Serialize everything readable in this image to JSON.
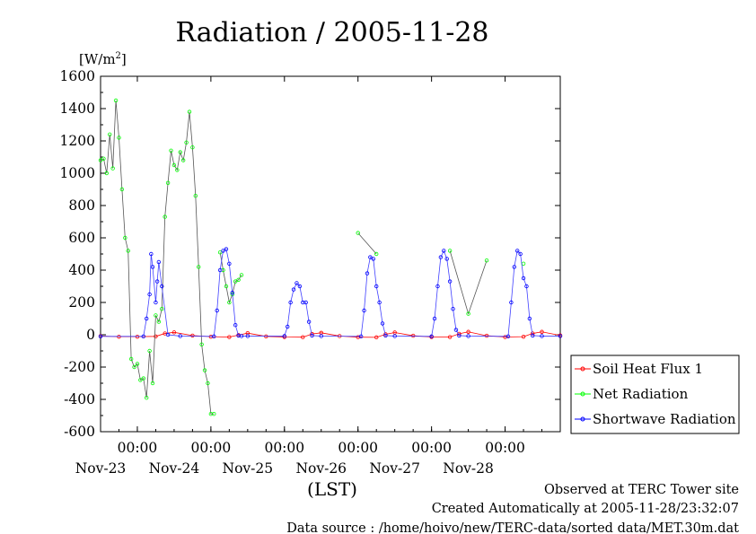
{
  "chart_data": {
    "type": "line",
    "title": "Radiation / 2005-11-28",
    "ylabel": "[W/m",
    "ylabel_sup": "2",
    "ylabel_close": "]",
    "xlabel": "(LST)",
    "ylim": [
      -600,
      1600
    ],
    "xlim": [
      "2005-11-22 12:00",
      "2005-11-28 18:00"
    ],
    "y_ticks": [
      "1600",
      "1400",
      "1200",
      "1000",
      "800",
      "600",
      "400",
      "200",
      "0",
      "-200",
      "-400",
      "-600"
    ],
    "x_ticks": [
      {
        "time": "00:00",
        "date": "Nov-23",
        "x": "2005-11-23 00:00"
      },
      {
        "time": "00:00",
        "date": "Nov-24",
        "x": "2005-11-24 00:00"
      },
      {
        "time": "00:00",
        "date": "Nov-25",
        "x": "2005-11-25 00:00"
      },
      {
        "time": "00:00",
        "date": "Nov-26",
        "x": "2005-11-26 00:00"
      },
      {
        "time": "00:00",
        "date": "Nov-27",
        "x": "2005-11-27 00:00"
      },
      {
        "time": "00:00",
        "date": "Nov-28",
        "x": "2005-11-28 00:00"
      }
    ],
    "legend_position": "right",
    "grid": false,
    "series": [
      {
        "name": "Soil Heat Flux 1",
        "color": "#ff0000",
        "x": [
          "2005-11-22 12:00",
          "2005-11-22 18:00",
          "2005-11-23 00:00",
          "2005-11-23 06:00",
          "2005-11-23 09:00",
          "2005-11-23 12:00",
          "2005-11-23 18:00",
          "2005-11-24 00:00",
          "2005-11-24 06:00",
          "2005-11-24 09:00",
          "2005-11-24 12:00",
          "2005-11-24 18:00",
          "2005-11-25 00:00",
          "2005-11-25 06:00",
          "2005-11-25 09:00",
          "2005-11-25 12:00",
          "2005-11-25 18:00",
          "2005-11-26 00:00",
          "2005-11-26 06:00",
          "2005-11-26 09:00",
          "2005-11-26 12:00",
          "2005-11-26 18:00",
          "2005-11-27 00:00",
          "2005-11-27 06:00",
          "2005-11-27 09:00",
          "2005-11-27 12:00",
          "2005-11-27 18:00",
          "2005-11-28 00:00",
          "2005-11-28 06:00",
          "2005-11-28 09:00",
          "2005-11-28 12:00",
          "2005-11-28 18:00"
        ],
        "y": [
          -8,
          -12,
          -12,
          -10,
          8,
          15,
          -5,
          -12,
          -14,
          -2,
          10,
          -10,
          -14,
          -15,
          5,
          12,
          -8,
          -15,
          -16,
          3,
          14,
          -6,
          -14,
          -14,
          6,
          18,
          -6,
          -14,
          -12,
          8,
          18,
          -4
        ]
      },
      {
        "name": "Net Radiation",
        "color": "#00ff00",
        "x": [
          "2005-11-22 12:00",
          "2005-11-22 13:00",
          "2005-11-22 14:00",
          "2005-11-22 15:00",
          "2005-11-22 16:00",
          "2005-11-22 17:00",
          "2005-11-22 18:00",
          "2005-11-22 19:00",
          "2005-11-22 20:00",
          "2005-11-22 21:00",
          "2005-11-22 22:00",
          "2005-11-22 23:00",
          "2005-11-23 00:00",
          "2005-11-23 01:00",
          "2005-11-23 02:00",
          "2005-11-23 03:00",
          "2005-11-23 04:00",
          "2005-11-23 05:00",
          "2005-11-23 06:00",
          "2005-11-23 07:00",
          "2005-11-23 08:00",
          "2005-11-23 09:00",
          "2005-11-23 10:00",
          "2005-11-23 11:00",
          "2005-11-23 12:00",
          "2005-11-23 13:00",
          "2005-11-23 14:00",
          "2005-11-23 15:00",
          "2005-11-23 16:00",
          "2005-11-23 17:00",
          "2005-11-23 18:00",
          "2005-11-23 19:00",
          "2005-11-23 20:00",
          "2005-11-23 21:00",
          "2005-11-23 22:00",
          "2005-11-23 23:00",
          "2005-11-24 00:00",
          "2005-11-24 01:00",
          "2005-11-24 02:00",
          "2005-11-24 03:00",
          "2005-11-24 04:00",
          "2005-11-24 05:00",
          "2005-11-24 06:00",
          "2005-11-24 07:00",
          "2005-11-24 08:00",
          "2005-11-24 09:00",
          "2005-11-24 10:00",
          "2005-11-24 11:00",
          "2005-11-24 12:00",
          "2005-11-24 13:00",
          "2005-11-24 14:00",
          "2005-11-24 15:00",
          "2005-11-24 16:00",
          "2005-11-24 17:00",
          "2005-11-24 18:00",
          "2005-11-25 00:00",
          "2005-11-25 06:00",
          "2005-11-25 12:00",
          "2005-11-25 18:00",
          "2005-11-26 00:00",
          "2005-11-26 06:00",
          "2005-11-26 12:00",
          "2005-11-26 18:00",
          "2005-11-27 00:00",
          "2005-11-27 06:00",
          "2005-11-27 12:00",
          "2005-11-27 18:00",
          "2005-11-28 00:00",
          "2005-11-28 06:00",
          "2005-11-28 12:00",
          "2005-11-28 18:00"
        ],
        "y": [
          1080,
          1090,
          1000,
          1240,
          1030,
          1450,
          1220,
          900,
          600,
          520,
          -150,
          -200,
          -180,
          -280,
          -270,
          -390,
          -100,
          -300,
          120,
          80,
          160,
          730,
          940,
          1140,
          1050,
          1020,
          1130,
          1080,
          1190,
          1380,
          1160,
          860,
          420,
          -60,
          -220,
          -300,
          -490,
          -490,
          null,
          510,
          400,
          300,
          200,
          250,
          330,
          340,
          370,
          null,
          null,
          null,
          null,
          null,
          null,
          null,
          null,
          null,
          null,
          null,
          null,
          630,
          500,
          null,
          null,
          null,
          520,
          130,
          460,
          null,
          440,
          null,
          null
        ]
      },
      {
        "name": "Shortwave Radiation",
        "color": "#0000ff",
        "x": [
          "2005-11-22 12:00",
          "2005-11-23 02:00",
          "2005-11-23 03:00",
          "2005-11-23 04:00",
          "2005-11-23 04:30",
          "2005-11-23 05:00",
          "2005-11-23 06:00",
          "2005-11-23 06:30",
          "2005-11-23 07:00",
          "2005-11-23 08:00",
          "2005-11-23 10:00",
          "2005-11-23 14:00",
          "2005-11-24 01:00",
          "2005-11-24 02:00",
          "2005-11-24 03:00",
          "2005-11-24 04:00",
          "2005-11-24 05:00",
          "2005-11-24 06:00",
          "2005-11-24 07:00",
          "2005-11-24 08:00",
          "2005-11-24 09:00",
          "2005-11-24 10:00",
          "2005-11-24 12:00",
          "2005-11-25 00:00",
          "2005-11-25 01:00",
          "2005-11-25 02:00",
          "2005-11-25 03:00",
          "2005-11-25 04:00",
          "2005-11-25 05:00",
          "2005-11-25 06:00",
          "2005-11-25 07:00",
          "2005-11-25 08:00",
          "2005-11-25 09:00",
          "2005-11-25 12:00",
          "2005-11-26 01:00",
          "2005-11-26 02:00",
          "2005-11-26 03:00",
          "2005-11-26 04:00",
          "2005-11-26 05:00",
          "2005-11-26 06:00",
          "2005-11-26 07:00",
          "2005-11-26 08:00",
          "2005-11-26 09:00",
          "2005-11-26 12:00",
          "2005-11-27 00:00",
          "2005-11-27 01:00",
          "2005-11-27 02:00",
          "2005-11-27 03:00",
          "2005-11-27 04:00",
          "2005-11-27 05:00",
          "2005-11-27 06:00",
          "2005-11-27 07:00",
          "2005-11-27 08:00",
          "2005-11-27 09:00",
          "2005-11-27 12:00",
          "2005-11-28 01:00",
          "2005-11-28 02:00",
          "2005-11-28 03:00",
          "2005-11-28 04:00",
          "2005-11-28 05:00",
          "2005-11-28 06:00",
          "2005-11-28 07:00",
          "2005-11-28 08:00",
          "2005-11-28 09:00",
          "2005-11-28 12:00",
          "2005-11-28 18:00"
        ],
        "y": [
          -10,
          -10,
          100,
          250,
          500,
          420,
          200,
          330,
          450,
          300,
          0,
          -8,
          -10,
          150,
          400,
          520,
          530,
          440,
          260,
          60,
          -5,
          -8,
          -8,
          -8,
          50,
          200,
          280,
          320,
          300,
          200,
          200,
          80,
          -5,
          -8,
          -10,
          150,
          380,
          480,
          470,
          300,
          200,
          70,
          -5,
          -8,
          -10,
          100,
          300,
          480,
          520,
          470,
          330,
          160,
          30,
          -5,
          -8,
          -10,
          200,
          420,
          520,
          500,
          350,
          300,
          100,
          -5,
          -8,
          -8
        ]
      }
    ]
  },
  "footer": {
    "line1": "Observed at TERC Tower site",
    "line2": "Created Automatically at 2005-11-28/23:32:07",
    "line3": "Data source : /home/hoivo/new/TERC-data/sorted data/MET.30m.dat"
  }
}
